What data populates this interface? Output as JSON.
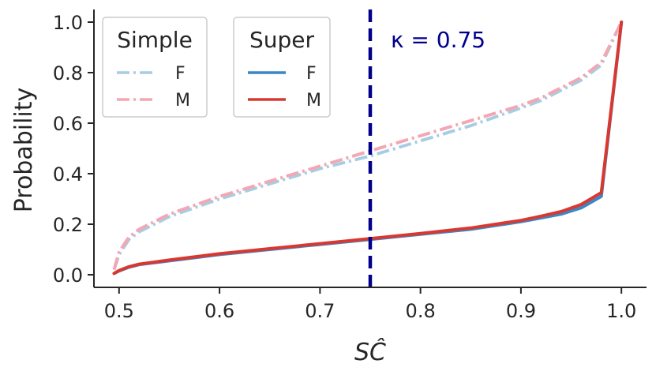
{
  "chart_data": {
    "type": "line",
    "xlabel": "SĈ",
    "ylabel": "Probability",
    "xlim": [
      0.475,
      1.025
    ],
    "ylim": [
      -0.05,
      1.05
    ],
    "xticks": [
      "0.5",
      "0.6",
      "0.7",
      "0.8",
      "0.9",
      "1.0"
    ],
    "yticks": [
      "0.0",
      "0.2",
      "0.4",
      "0.6",
      "0.8",
      "1.0"
    ],
    "grid": false,
    "legends": [
      {
        "title": "Simple",
        "placement": "top-left",
        "entries": [
          {
            "label": "F",
            "series": 0
          },
          {
            "label": "M",
            "series": 1
          }
        ]
      },
      {
        "title": "Super",
        "placement": "top-left",
        "entries": [
          {
            "label": "F",
            "series": 2
          },
          {
            "label": "M",
            "series": 3
          }
        ]
      }
    ],
    "annotations": [
      {
        "text": "κ = 0.75",
        "x": 0.75,
        "style": "dashed vertical line"
      }
    ],
    "x": [
      0.495,
      0.5,
      0.51,
      0.52,
      0.55,
      0.6,
      0.65,
      0.7,
      0.75,
      0.8,
      0.85,
      0.9,
      0.92,
      0.94,
      0.96,
      0.98,
      1.0
    ],
    "series": [
      {
        "name": "F",
        "group": "Simple",
        "color": "#a6cee3",
        "dash": "dashdot",
        "values": [
          0.02,
          0.08,
          0.14,
          0.17,
          0.23,
          0.3,
          0.36,
          0.42,
          0.47,
          0.53,
          0.59,
          0.66,
          0.69,
          0.73,
          0.77,
          0.83,
          1.0
        ]
      },
      {
        "name": "M",
        "group": "Simple",
        "color": "#f4a7b2",
        "dash": "dashdot",
        "values": [
          0.02,
          0.09,
          0.15,
          0.18,
          0.24,
          0.31,
          0.37,
          0.43,
          0.49,
          0.55,
          0.61,
          0.67,
          0.7,
          0.74,
          0.78,
          0.84,
          1.0
        ]
      },
      {
        "name": "F",
        "group": "Super",
        "color": "#3a87c6",
        "dash": "solid",
        "values": [
          0.005,
          0.015,
          0.03,
          0.04,
          0.055,
          0.08,
          0.1,
          0.12,
          0.14,
          0.16,
          0.18,
          0.21,
          0.225,
          0.24,
          0.265,
          0.31,
          1.0
        ]
      },
      {
        "name": "M",
        "group": "Super",
        "color": "#d93831",
        "dash": "solid",
        "values": [
          0.005,
          0.017,
          0.032,
          0.042,
          0.058,
          0.083,
          0.103,
          0.123,
          0.143,
          0.163,
          0.185,
          0.215,
          0.232,
          0.25,
          0.278,
          0.325,
          1.0
        ]
      }
    ]
  }
}
